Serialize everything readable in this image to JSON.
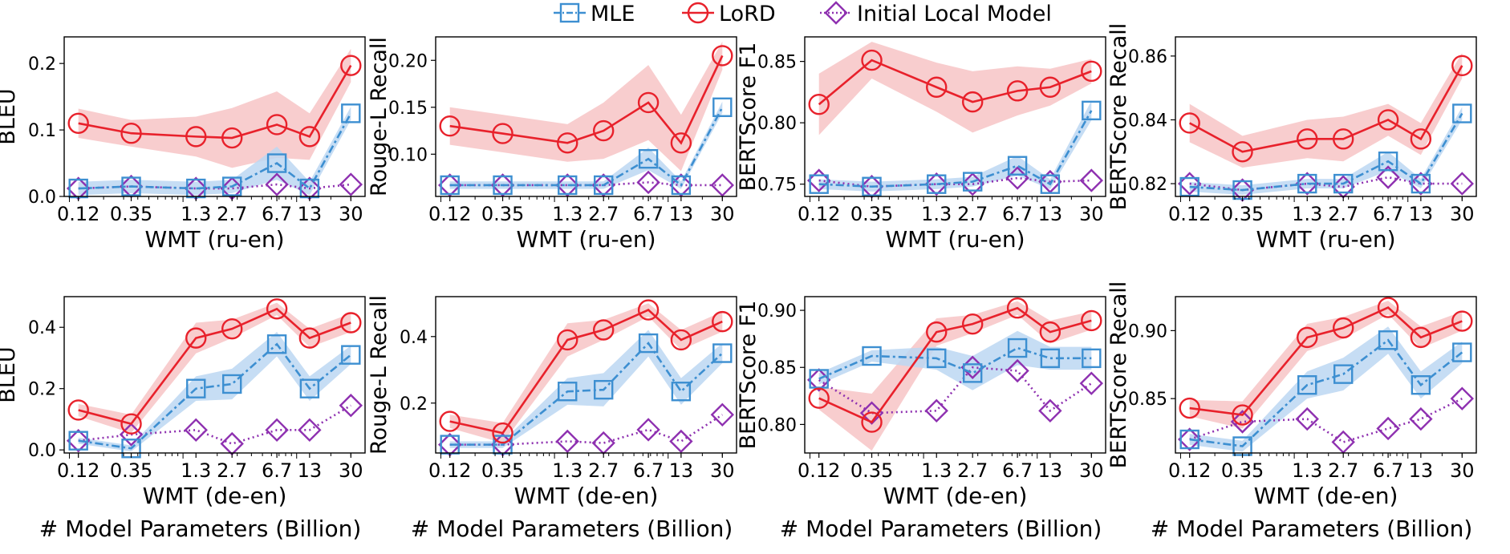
{
  "legend": {
    "position": "top-center",
    "entries": [
      {
        "label": "MLE",
        "color": "#3d8fd1",
        "marker": "square",
        "line": "dashdot"
      },
      {
        "label": "LoRD",
        "color": "#e8212b",
        "marker": "circle",
        "line": "solid"
      },
      {
        "label": "Initial Local Model",
        "color": "#8e30b0",
        "marker": "diamond",
        "line": "dotted"
      }
    ]
  },
  "colors": {
    "mle": "#3d8fd1",
    "lord": "#e8212b",
    "init": "#8e30b0",
    "mle_band": "#bcd7f2",
    "lord_band": "#f7c4c6"
  },
  "chart_data": [
    {
      "type": "line",
      "xlabel": "WMT (ru-en)",
      "ylabel": "BLEU",
      "x": [
        0.12,
        0.35,
        1.3,
        2.7,
        6.7,
        13,
        30
      ],
      "xticks": [
        "0.12",
        "0.35",
        "1.3",
        "2.7",
        "6.7",
        "13",
        "30"
      ],
      "ylim": [
        0,
        0.24
      ],
      "yticks": [
        0.0,
        0.1,
        0.2
      ],
      "ytick_labels": [
        "0.0",
        "0.1",
        "0.2"
      ],
      "series": [
        {
          "name": "MLE",
          "values": [
            0.012,
            0.015,
            0.012,
            0.015,
            0.05,
            0.012,
            0.125
          ],
          "band": [
            0.01,
            0.01,
            0.01,
            0.01,
            0.025,
            0.01,
            0.01
          ]
        },
        {
          "name": "LoRD",
          "values": [
            0.11,
            0.095,
            0.09,
            0.088,
            0.108,
            0.09,
            0.197
          ],
          "band": [
            0.022,
            0.02,
            0.03,
            0.045,
            0.05,
            0.035,
            0.025
          ]
        },
        {
          "name": "Initial Local Model",
          "values": [
            0.012,
            0.015,
            0.012,
            0.012,
            0.018,
            0.012,
            0.018
          ]
        }
      ]
    },
    {
      "type": "line",
      "xlabel": "WMT (ru-en)",
      "ylabel": "Rouge-L Recall",
      "x": [
        0.12,
        0.35,
        1.3,
        2.7,
        6.7,
        13,
        30
      ],
      "xticks": [
        "0.12",
        "0.35",
        "1.3",
        "2.7",
        "6.7",
        "13",
        "30"
      ],
      "ylim": [
        0.055,
        0.225
      ],
      "yticks": [
        0.1,
        0.15,
        0.2
      ],
      "ytick_labels": [
        "0.10",
        "0.15",
        "0.20"
      ],
      "series": [
        {
          "name": "MLE",
          "values": [
            0.067,
            0.067,
            0.067,
            0.067,
            0.095,
            0.067,
            0.15
          ],
          "band": [
            0.004,
            0.004,
            0.004,
            0.004,
            0.012,
            0.004,
            0.006
          ]
        },
        {
          "name": "LoRD",
          "values": [
            0.13,
            0.122,
            0.112,
            0.125,
            0.155,
            0.112,
            0.205
          ],
          "band": [
            0.02,
            0.02,
            0.02,
            0.03,
            0.04,
            0.03,
            0.015
          ]
        },
        {
          "name": "Initial Local Model",
          "values": [
            0.067,
            0.067,
            0.067,
            0.067,
            0.07,
            0.067,
            0.067
          ]
        }
      ]
    },
    {
      "type": "line",
      "xlabel": "WMT (ru-en)",
      "ylabel": "BERTScore F1",
      "x": [
        0.12,
        0.35,
        1.3,
        2.7,
        6.7,
        13,
        30
      ],
      "xticks": [
        "0.12",
        "0.35",
        "1.3",
        "2.7",
        "6.7",
        "13",
        "30"
      ],
      "ylim": [
        0.74,
        0.87
      ],
      "yticks": [
        0.75,
        0.8,
        0.85
      ],
      "ytick_labels": [
        "0.75",
        "0.80",
        "0.85"
      ],
      "series": [
        {
          "name": "MLE",
          "values": [
            0.75,
            0.748,
            0.75,
            0.752,
            0.765,
            0.75,
            0.81
          ],
          "band": [
            0.004,
            0.004,
            0.004,
            0.004,
            0.008,
            0.004,
            0.008
          ]
        },
        {
          "name": "LoRD",
          "values": [
            0.815,
            0.851,
            0.829,
            0.817,
            0.826,
            0.829,
            0.842
          ],
          "band": [
            0.025,
            0.015,
            0.02,
            0.025,
            0.02,
            0.015,
            0.01
          ]
        },
        {
          "name": "Initial Local Model",
          "values": [
            0.753,
            0.748,
            0.75,
            0.75,
            0.755,
            0.752,
            0.753
          ]
        }
      ]
    },
    {
      "type": "line",
      "xlabel": "WMT (ru-en)",
      "ylabel": "BERTScore Recall",
      "x": [
        0.12,
        0.35,
        1.3,
        2.7,
        6.7,
        13,
        30
      ],
      "xticks": [
        "0.12",
        "0.35",
        "1.3",
        "2.7",
        "6.7",
        "13",
        "30"
      ],
      "ylim": [
        0.816,
        0.866
      ],
      "yticks": [
        0.82,
        0.84,
        0.86
      ],
      "ytick_labels": [
        "0.82",
        "0.84",
        "0.86"
      ],
      "series": [
        {
          "name": "MLE",
          "values": [
            0.819,
            0.818,
            0.82,
            0.82,
            0.827,
            0.82,
            0.842
          ],
          "band": [
            0.0015,
            0.0015,
            0.0015,
            0.0015,
            0.003,
            0.0015,
            0.002
          ]
        },
        {
          "name": "LoRD",
          "values": [
            0.839,
            0.83,
            0.834,
            0.834,
            0.84,
            0.834,
            0.857
          ],
          "band": [
            0.006,
            0.005,
            0.006,
            0.007,
            0.005,
            0.005,
            0.004
          ]
        },
        {
          "name": "Initial Local Model",
          "values": [
            0.82,
            0.818,
            0.82,
            0.819,
            0.822,
            0.82,
            0.82
          ]
        }
      ]
    },
    {
      "type": "line",
      "xlabel": "WMT (de-en)",
      "ylabel": "BLEU",
      "x": [
        0.12,
        0.35,
        1.3,
        2.7,
        6.7,
        13,
        30
      ],
      "xticks": [
        "0.12",
        "0.35",
        "1.3",
        "2.7",
        "6.7",
        "13",
        "30"
      ],
      "ylim": [
        -0.01,
        0.5
      ],
      "yticks": [
        0.0,
        0.2,
        0.4
      ],
      "ytick_labels": [
        "0.0",
        "0.2",
        "0.4"
      ],
      "series": [
        {
          "name": "MLE",
          "values": [
            0.03,
            0.005,
            0.2,
            0.215,
            0.345,
            0.2,
            0.31
          ],
          "band": [
            0.01,
            0.01,
            0.04,
            0.05,
            0.04,
            0.04,
            0.03
          ]
        },
        {
          "name": "LoRD",
          "values": [
            0.13,
            0.085,
            0.365,
            0.395,
            0.46,
            0.365,
            0.415
          ],
          "band": [
            0.02,
            0.03,
            0.05,
            0.03,
            0.02,
            0.03,
            0.03
          ]
        },
        {
          "name": "Initial Local Model",
          "values": [
            0.03,
            0.05,
            0.065,
            0.02,
            0.065,
            0.065,
            0.145
          ]
        }
      ]
    },
    {
      "type": "line",
      "xlabel": "WMT (de-en)",
      "ylabel": "Rouge-L Recall",
      "x": [
        0.12,
        0.35,
        1.3,
        2.7,
        6.7,
        13,
        30
      ],
      "xticks": [
        "0.12",
        "0.35",
        "1.3",
        "2.7",
        "6.7",
        "13",
        "30"
      ],
      "ylim": [
        0.05,
        0.52
      ],
      "yticks": [
        0.2,
        0.4
      ],
      "ytick_labels": [
        "0.2",
        "0.4"
      ],
      "series": [
        {
          "name": "MLE",
          "values": [
            0.075,
            0.075,
            0.235,
            0.24,
            0.38,
            0.235,
            0.35
          ],
          "band": [
            0.01,
            0.01,
            0.04,
            0.05,
            0.04,
            0.04,
            0.03
          ]
        },
        {
          "name": "LoRD",
          "values": [
            0.145,
            0.11,
            0.39,
            0.42,
            0.48,
            0.39,
            0.445
          ],
          "band": [
            0.02,
            0.03,
            0.05,
            0.03,
            0.02,
            0.03,
            0.03
          ]
        },
        {
          "name": "Initial Local Model",
          "values": [
            0.075,
            0.075,
            0.085,
            0.08,
            0.12,
            0.085,
            0.165
          ]
        }
      ]
    },
    {
      "type": "line",
      "xlabel": "WMT (de-en)",
      "ylabel": "BERTScore F1",
      "x": [
        0.12,
        0.35,
        1.3,
        2.7,
        6.7,
        13,
        30
      ],
      "xticks": [
        "0.12",
        "0.35",
        "1.3",
        "2.7",
        "6.7",
        "13",
        "30"
      ],
      "ylim": [
        0.775,
        0.912
      ],
      "yticks": [
        0.8,
        0.85,
        0.9
      ],
      "ytick_labels": [
        "0.80",
        "0.85",
        "0.90"
      ],
      "series": [
        {
          "name": "MLE",
          "values": [
            0.84,
            0.86,
            0.858,
            0.845,
            0.867,
            0.858,
            0.858
          ],
          "band": [
            0.005,
            0.005,
            0.01,
            0.015,
            0.015,
            0.01,
            0.01
          ]
        },
        {
          "name": "LoRD",
          "values": [
            0.823,
            0.802,
            0.881,
            0.888,
            0.902,
            0.881,
            0.891
          ],
          "band": [
            0.01,
            0.025,
            0.012,
            0.008,
            0.006,
            0.01,
            0.008
          ]
        },
        {
          "name": "Initial Local Model",
          "values": [
            0.839,
            0.81,
            0.812,
            0.85,
            0.847,
            0.812,
            0.836
          ]
        }
      ]
    },
    {
      "type": "line",
      "xlabel": "WMT (de-en)",
      "ylabel": "BERTScore Recall",
      "x": [
        0.12,
        0.35,
        1.3,
        2.7,
        6.7,
        13,
        30
      ],
      "xticks": [
        "0.12",
        "0.35",
        "1.3",
        "2.7",
        "6.7",
        "13",
        "30"
      ],
      "ylim": [
        0.81,
        0.925
      ],
      "yticks": [
        0.85,
        0.9
      ],
      "ytick_labels": [
        "0.85",
        "0.90"
      ],
      "series": [
        {
          "name": "MLE",
          "values": [
            0.82,
            0.815,
            0.86,
            0.868,
            0.893,
            0.86,
            0.884
          ],
          "band": [
            0.004,
            0.004,
            0.01,
            0.012,
            0.01,
            0.01,
            0.008
          ]
        },
        {
          "name": "LoRD",
          "values": [
            0.843,
            0.838,
            0.895,
            0.902,
            0.917,
            0.895,
            0.907
          ],
          "band": [
            0.006,
            0.01,
            0.01,
            0.008,
            0.005,
            0.008,
            0.007
          ]
        },
        {
          "name": "Initial Local Model",
          "values": [
            0.82,
            0.833,
            0.835,
            0.818,
            0.828,
            0.835,
            0.85
          ]
        }
      ]
    }
  ],
  "bottom_caption": "# Model Parameters (Billion)"
}
